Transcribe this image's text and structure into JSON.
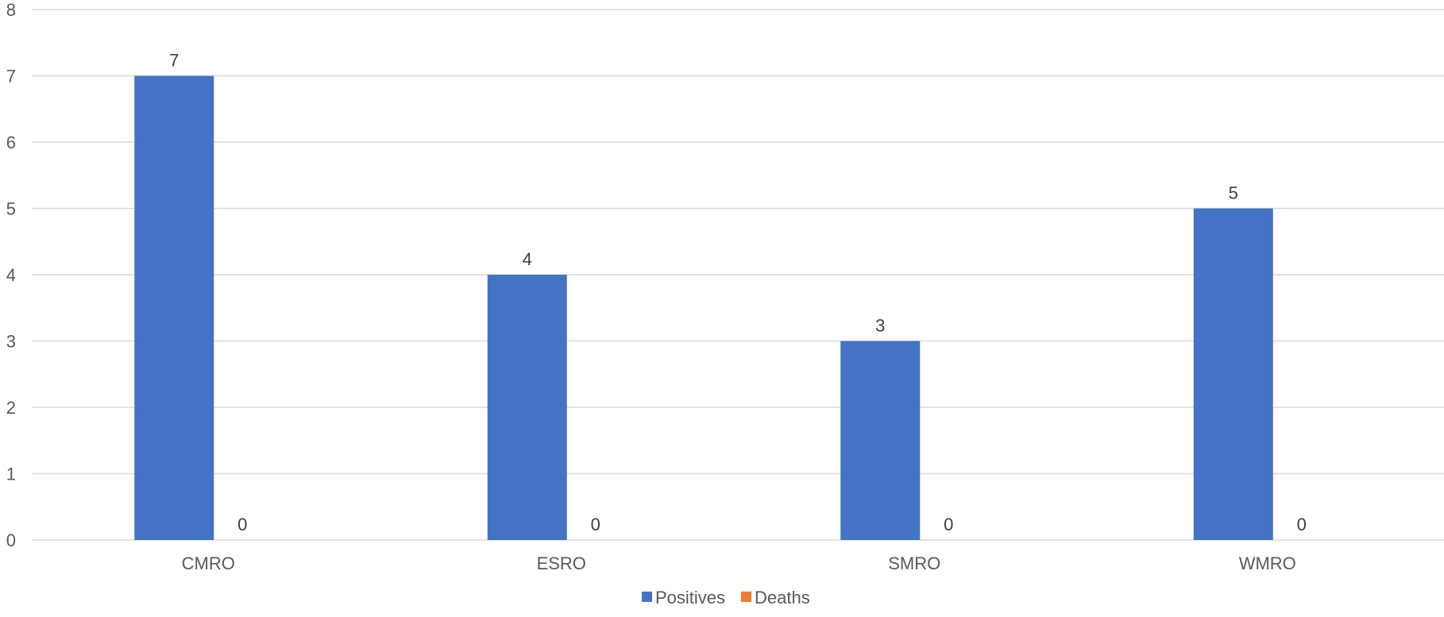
{
  "chart_data": {
    "type": "bar",
    "title": "",
    "xlabel": "",
    "ylabel": "",
    "categories": [
      "CMRO",
      "ESRO",
      "SMRO",
      "WMRO"
    ],
    "series": [
      {
        "name": "Positives",
        "values": [
          7,
          4,
          3,
          5
        ],
        "color": "#4472C4"
      },
      {
        "name": "Deaths",
        "values": [
          0,
          0,
          0,
          0
        ],
        "color": "#ED7D31"
      }
    ],
    "ylim": [
      0,
      8
    ],
    "yticks": [
      0,
      1,
      2,
      3,
      4,
      5,
      6,
      7,
      8
    ],
    "grid": true,
    "data_labels": true,
    "legend_position": "bottom"
  }
}
